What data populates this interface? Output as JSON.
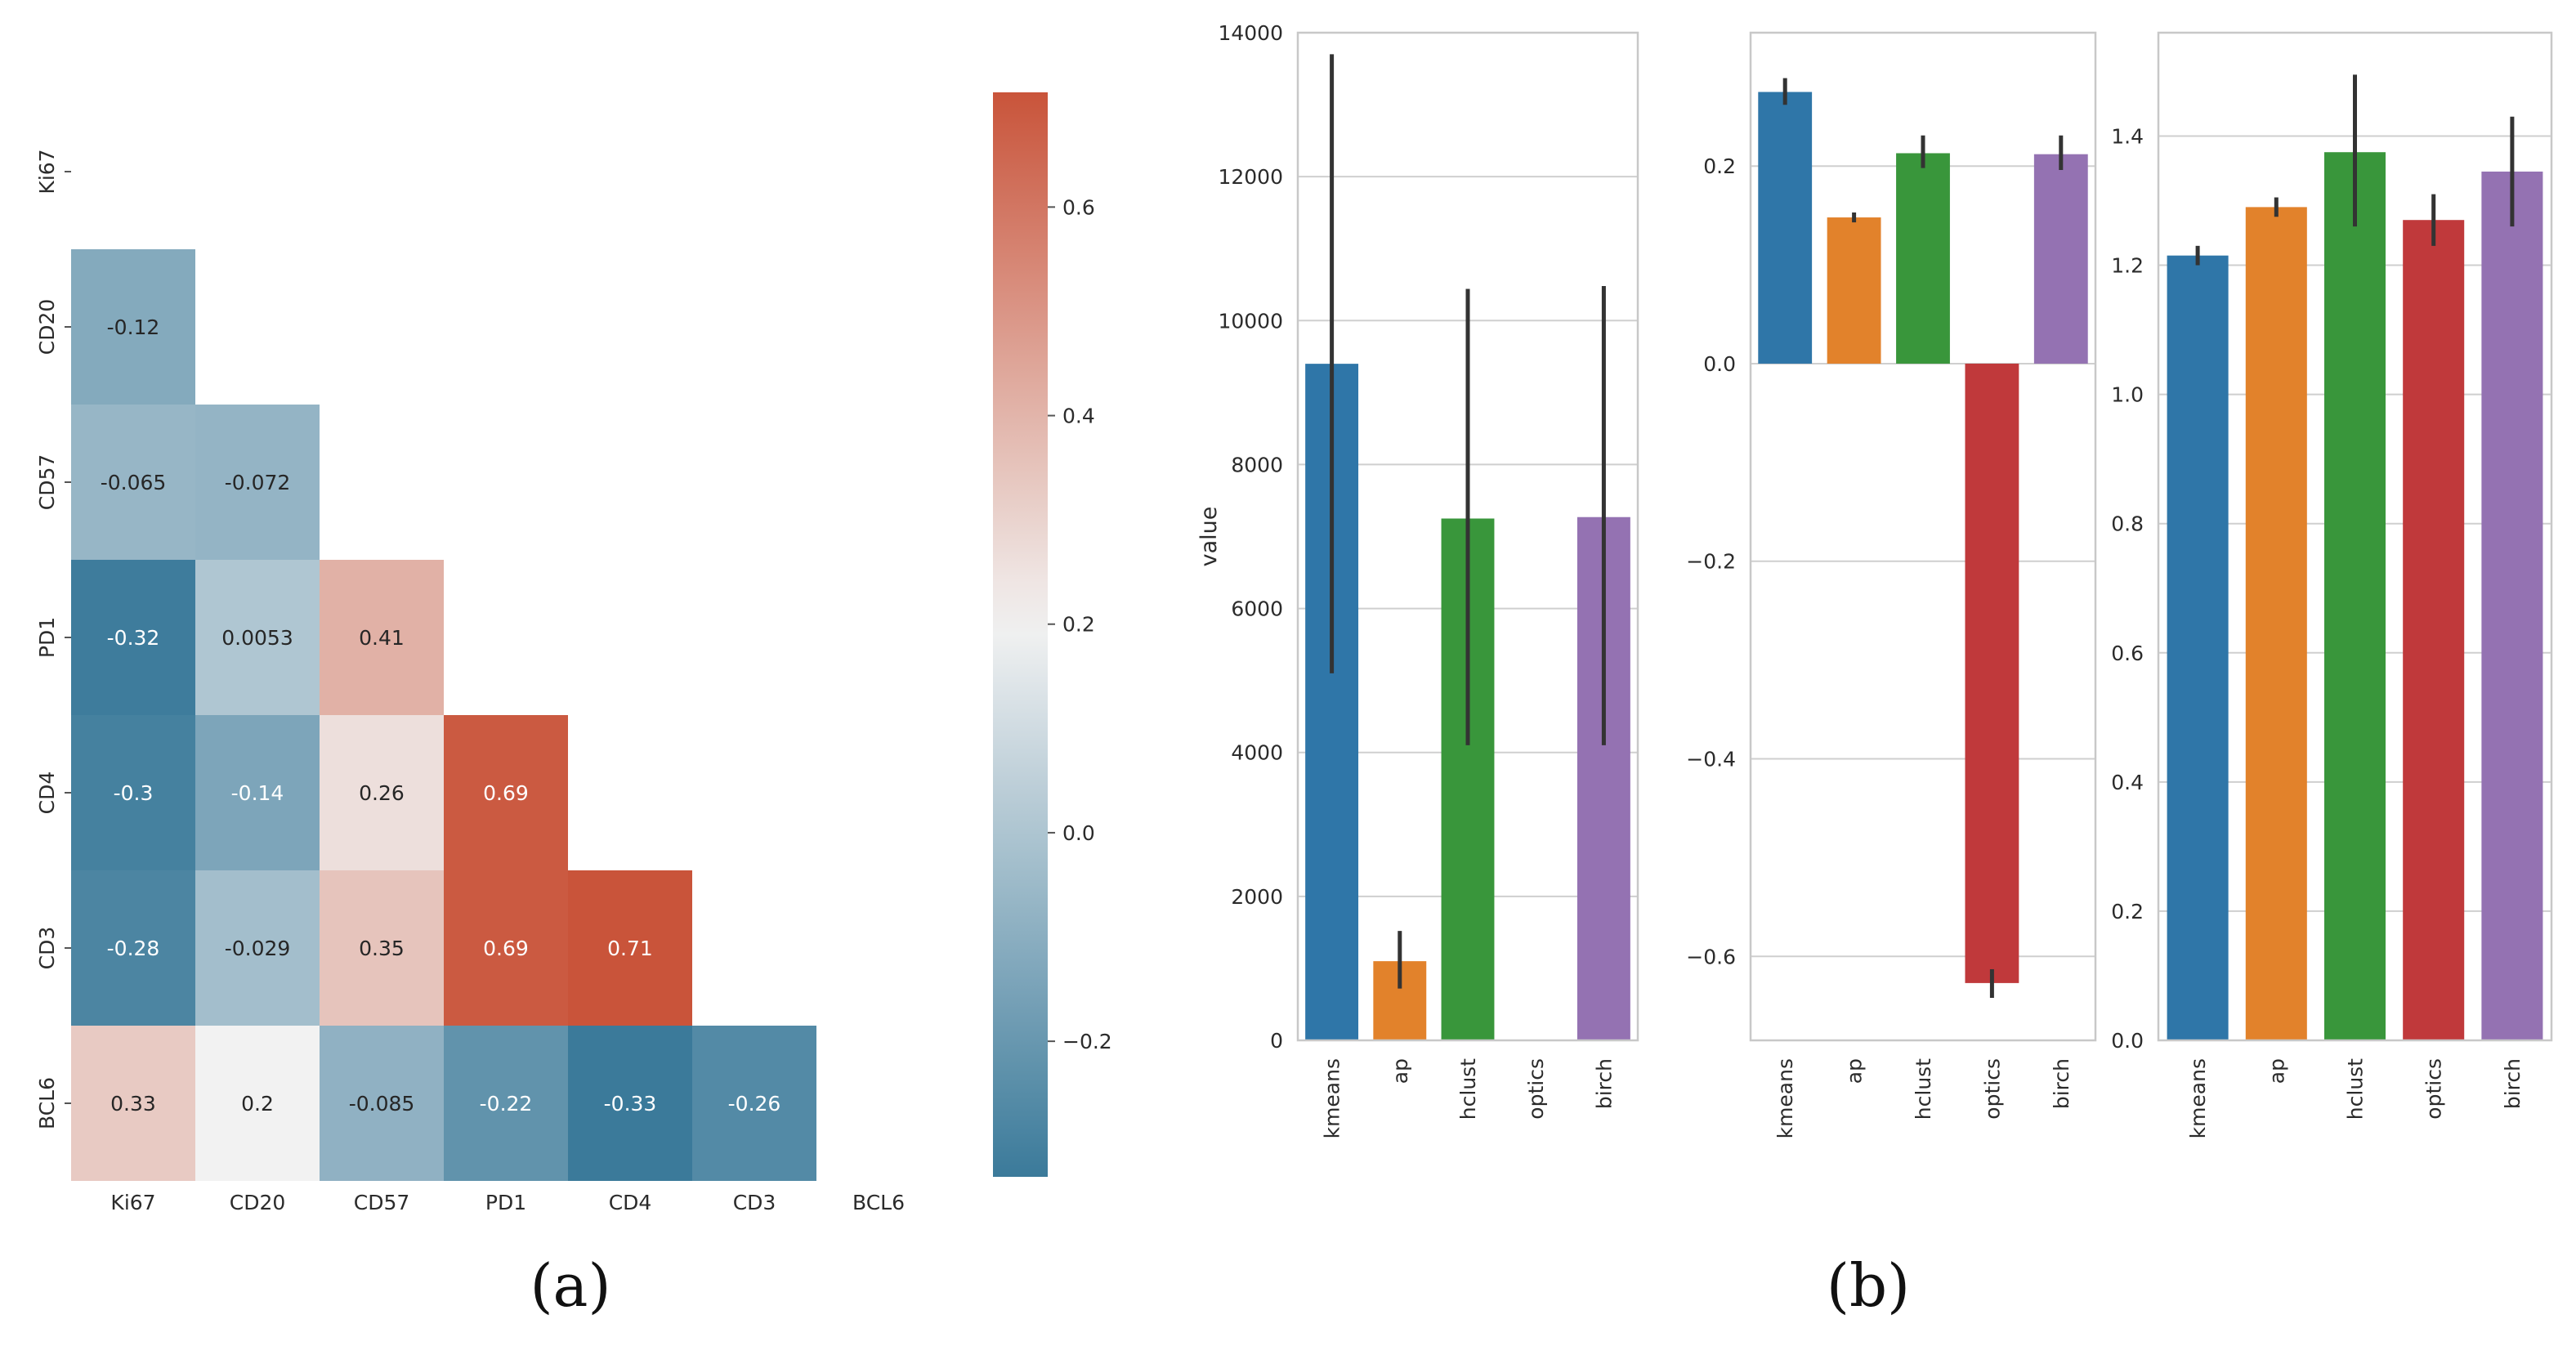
{
  "figure": {
    "label_a": "(a)",
    "label_b": "(b)"
  },
  "chart_data": [
    {
      "type": "heatmap",
      "panel": "a",
      "title": "",
      "variables": [
        "Ki67",
        "CD20",
        "CD57",
        "PD1",
        "CD4",
        "CD3",
        "BCL6"
      ],
      "mask": "upper-triangle-including-diagonal",
      "cells": [
        {
          "row": "CD20",
          "col": "Ki67",
          "value": -0.12,
          "label": "-0.12"
        },
        {
          "row": "CD57",
          "col": "Ki67",
          "value": -0.065,
          "label": "-0.065"
        },
        {
          "row": "CD57",
          "col": "CD20",
          "value": -0.072,
          "label": "-0.072"
        },
        {
          "row": "PD1",
          "col": "Ki67",
          "value": -0.32,
          "label": "-0.32"
        },
        {
          "row": "PD1",
          "col": "CD20",
          "value": 0.0053,
          "label": "0.0053"
        },
        {
          "row": "PD1",
          "col": "CD57",
          "value": 0.41,
          "label": "0.41"
        },
        {
          "row": "CD4",
          "col": "Ki67",
          "value": -0.3,
          "label": "-0.3"
        },
        {
          "row": "CD4",
          "col": "CD20",
          "value": -0.14,
          "label": "-0.14"
        },
        {
          "row": "CD4",
          "col": "CD57",
          "value": 0.26,
          "label": "0.26"
        },
        {
          "row": "CD4",
          "col": "PD1",
          "value": 0.69,
          "label": "0.69"
        },
        {
          "row": "CD3",
          "col": "Ki67",
          "value": -0.28,
          "label": "-0.28"
        },
        {
          "row": "CD3",
          "col": "CD20",
          "value": -0.029,
          "label": "-0.029"
        },
        {
          "row": "CD3",
          "col": "CD57",
          "value": 0.35,
          "label": "0.35"
        },
        {
          "row": "CD3",
          "col": "PD1",
          "value": 0.69,
          "label": "0.69"
        },
        {
          "row": "CD3",
          "col": "CD4",
          "value": 0.71,
          "label": "0.71"
        },
        {
          "row": "BCL6",
          "col": "Ki67",
          "value": 0.33,
          "label": "0.33"
        },
        {
          "row": "BCL6",
          "col": "CD20",
          "value": 0.2,
          "label": "0.2"
        },
        {
          "row": "BCL6",
          "col": "CD57",
          "value": -0.085,
          "label": "-0.085"
        },
        {
          "row": "BCL6",
          "col": "PD1",
          "value": -0.22,
          "label": "-0.22"
        },
        {
          "row": "BCL6",
          "col": "CD4",
          "value": -0.33,
          "label": "-0.33"
        },
        {
          "row": "BCL6",
          "col": "CD3",
          "value": -0.26,
          "label": "-0.26"
        }
      ],
      "colorbar": {
        "vmin": -0.33,
        "vmax": 0.71,
        "ticks": [
          -0.2,
          0.0,
          0.2,
          0.4,
          0.6
        ],
        "tick_labels": [
          "−0.2",
          "0.0",
          "0.2",
          "0.4",
          "0.6"
        ],
        "cmap": {
          "neg": "#3b7a9a",
          "mid": "#f2f2f2",
          "pos": "#c9543a"
        }
      }
    },
    {
      "type": "bar",
      "panel": "b1",
      "categories": [
        "kmeans",
        "ap",
        "hclust",
        "optics",
        "birch"
      ],
      "values": [
        9400,
        1100,
        7250,
        0,
        7270
      ],
      "error_low": [
        5100,
        720,
        4100,
        null,
        4100
      ],
      "error_high": [
        13700,
        1520,
        10440,
        null,
        10480
      ],
      "ylabel": "value",
      "ylim": [
        0,
        14000
      ],
      "yticks": [
        0,
        2000,
        4000,
        6000,
        8000,
        10000,
        12000,
        14000
      ],
      "ytick_labels": [
        "0",
        "2000",
        "4000",
        "6000",
        "8000",
        "10000",
        "12000",
        "14000"
      ]
    },
    {
      "type": "bar",
      "panel": "b2",
      "categories": [
        "kmeans",
        "ap",
        "hclust",
        "optics",
        "birch"
      ],
      "values": [
        0.275,
        0.148,
        0.213,
        -0.627,
        0.212
      ],
      "error_low": [
        0.262,
        0.143,
        0.198,
        -0.642,
        0.196
      ],
      "error_high": [
        0.289,
        0.153,
        0.231,
        -0.613,
        0.231
      ],
      "ylabel": "",
      "ylim": [
        -0.685,
        0.335
      ],
      "yticks": [
        -0.6,
        -0.4,
        -0.2,
        0.0,
        0.2
      ],
      "ytick_labels": [
        "−0.6",
        "−0.4",
        "−0.2",
        "0.0",
        "0.2"
      ]
    },
    {
      "type": "bar",
      "panel": "b3",
      "categories": [
        "kmeans",
        "ap",
        "hclust",
        "optics",
        "birch"
      ],
      "values": [
        1.215,
        1.29,
        1.375,
        1.27,
        1.345
      ],
      "error_low": [
        1.2,
        1.275,
        1.26,
        1.23,
        1.26
      ],
      "error_high": [
        1.23,
        1.305,
        1.495,
        1.31,
        1.43
      ],
      "ylabel": "",
      "ylim": [
        0,
        1.56
      ],
      "yticks": [
        0.0,
        0.2,
        0.4,
        0.6,
        0.8,
        1.0,
        1.2,
        1.4
      ],
      "ytick_labels": [
        "0.0",
        "0.2",
        "0.4",
        "0.6",
        "0.8",
        "1.0",
        "1.2",
        "1.4"
      ]
    }
  ],
  "colors": {
    "kmeans": "#2f76a8",
    "ap": "#e2822b",
    "hclust": "#39963b",
    "optics": "#c0393b",
    "birch": "#9472b2",
    "grid": "#cfcfcf",
    "axis": "#c8c8c8",
    "text": "#2b2b2b",
    "errbar": "#333333"
  }
}
